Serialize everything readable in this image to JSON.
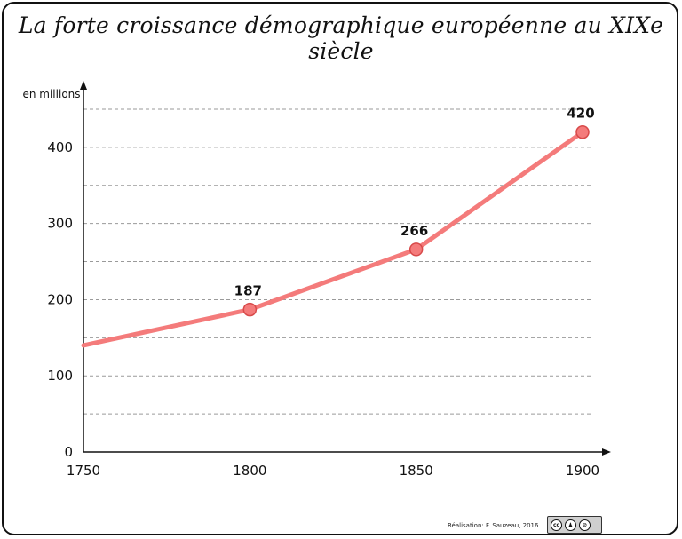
{
  "title": "La forte croissance démographique européenne au XIXe siècle",
  "credit": "Réalisation: F. Sauzeau, 2016",
  "license_badge": {
    "text": "cc",
    "icon_names": [
      "cc-icon",
      "by-icon",
      "nc-icon"
    ]
  },
  "chart_data": {
    "type": "line",
    "title": "La forte croissance démographique européenne au XIXe siècle",
    "ylabel": "en millions",
    "xlabel": "",
    "x": [
      1750,
      1800,
      1850,
      1900
    ],
    "series": [
      {
        "values": [
          140,
          187,
          266,
          420
        ],
        "color": "#f47b7b"
      }
    ],
    "data_labels": [
      "",
      "187",
      "266",
      "420"
    ],
    "marker_points": [
      1800,
      1850,
      1900
    ],
    "x_ticks": [
      1750,
      1800,
      1850,
      1900
    ],
    "y_ticks": [
      0,
      100,
      200,
      300,
      400
    ],
    "ylim": [
      0,
      450
    ],
    "xlim": [
      1750,
      1900
    ],
    "grid": "dashed horizontal every 50"
  }
}
